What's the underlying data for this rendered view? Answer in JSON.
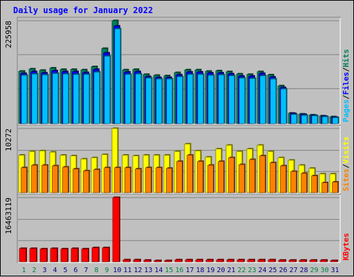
{
  "chart_data": [
    {
      "type": "bar",
      "title": "Daily usage for January 2022",
      "ylabel": "225958",
      "ymax": 225958,
      "ylim": [
        0,
        225958
      ],
      "grid": true,
      "legend": [
        "Pages",
        "Files",
        "Hits"
      ],
      "colors": {
        "hits": "#00805c",
        "files": "#0000ff",
        "pages": "#00c0ff"
      },
      "categories": [
        "1",
        "2",
        "3",
        "4",
        "5",
        "6",
        "7",
        "8",
        "9",
        "10",
        "11",
        "12",
        "13",
        "14",
        "15",
        "16",
        "17",
        "18",
        "19",
        "20",
        "21",
        "22",
        "23",
        "24",
        "25",
        "26",
        "27",
        "28",
        "29",
        "30",
        "31"
      ],
      "series": [
        {
          "name": "Hits",
          "values": [
            115000,
            120000,
            117000,
            122000,
            119000,
            119000,
            118000,
            125000,
            165000,
            225958,
            118000,
            119000,
            108000,
            106000,
            105000,
            112000,
            118000,
            118000,
            115000,
            116000,
            114000,
            109000,
            108000,
            114000,
            107000,
            83000,
            23000,
            21000,
            19000,
            17000,
            15000
          ]
        },
        {
          "name": "Files",
          "values": [
            110000,
            114000,
            111000,
            116000,
            114000,
            114000,
            112000,
            119000,
            155000,
            214000,
            113000,
            114000,
            103000,
            101000,
            101000,
            107000,
            113000,
            113000,
            111000,
            111000,
            109000,
            104000,
            104000,
            110000,
            102000,
            79000,
            22000,
            20000,
            18000,
            16000,
            14000
          ]
        },
        {
          "name": "Pages",
          "values": [
            106000,
            109000,
            107000,
            110000,
            109000,
            108000,
            108000,
            113000,
            148000,
            208000,
            108000,
            109000,
            100000,
            98000,
            98000,
            103000,
            108000,
            108000,
            106000,
            107000,
            105000,
            100000,
            99000,
            105000,
            98000,
            76000,
            20000,
            18000,
            17000,
            15000,
            13000
          ]
        }
      ]
    },
    {
      "type": "bar",
      "ylabel": "10272",
      "ymax": 10272,
      "ylim": [
        0,
        10272
      ],
      "grid": true,
      "legend": [
        "Sites",
        "Visits"
      ],
      "colors": {
        "visits": "#ffff00",
        "sites": "#ff8000"
      },
      "categories": [
        "1",
        "2",
        "3",
        "4",
        "5",
        "6",
        "7",
        "8",
        "9",
        "10",
        "11",
        "12",
        "13",
        "14",
        "15",
        "16",
        "17",
        "18",
        "19",
        "20",
        "21",
        "22",
        "23",
        "24",
        "25",
        "26",
        "27",
        "28",
        "29",
        "30",
        "31"
      ],
      "series": [
        {
          "name": "Visits",
          "values": [
            6000,
            6600,
            6700,
            6500,
            6000,
            5900,
            5400,
            5600,
            6100,
            10272,
            6000,
            5900,
            6000,
            6000,
            6000,
            6600,
            7800,
            6700,
            5700,
            7000,
            7600,
            6600,
            7000,
            7600,
            6600,
            5600,
            5200,
            4400,
            3900,
            3000,
            3000
          ]
        },
        {
          "name": "Sites",
          "values": [
            4000,
            4400,
            4400,
            4300,
            4100,
            3800,
            3500,
            3700,
            4000,
            4000,
            4000,
            3800,
            4000,
            4000,
            3900,
            5000,
            6000,
            5000,
            4400,
            5000,
            5600,
            4500,
            5300,
            5900,
            4800,
            4300,
            3400,
            3100,
            2700,
            1600,
            1700
          ]
        }
      ]
    },
    {
      "type": "bar",
      "ylabel": "16463119",
      "ymax": 16463119,
      "ylim": [
        0,
        16463119
      ],
      "grid": true,
      "legend": [
        "KBytes"
      ],
      "colors": {
        "kbytes": "#ff0000"
      },
      "categories": [
        "1",
        "2",
        "3",
        "4",
        "5",
        "6",
        "7",
        "8",
        "9",
        "10",
        "11",
        "12",
        "13",
        "14",
        "15",
        "16",
        "17",
        "18",
        "19",
        "20",
        "21",
        "22",
        "23",
        "24",
        "25",
        "26",
        "27",
        "28",
        "29",
        "30",
        "31"
      ],
      "weekend_days": [
        "1",
        "2",
        "8",
        "9",
        "15",
        "16",
        "22",
        "23",
        "29",
        "30"
      ],
      "weekend_color": "#008040",
      "weekday_color": "#000080",
      "series": [
        {
          "name": "KBytes",
          "values": [
            3400000,
            3400000,
            3300000,
            3400000,
            3300000,
            3400000,
            3300000,
            3600000,
            3600000,
            16463119,
            500000,
            500000,
            400000,
            300000,
            300000,
            500000,
            500000,
            500000,
            500000,
            500000,
            500000,
            500000,
            500000,
            500000,
            500000,
            400000,
            400000,
            400000,
            400000,
            400000,
            300000
          ]
        }
      ]
    }
  ]
}
